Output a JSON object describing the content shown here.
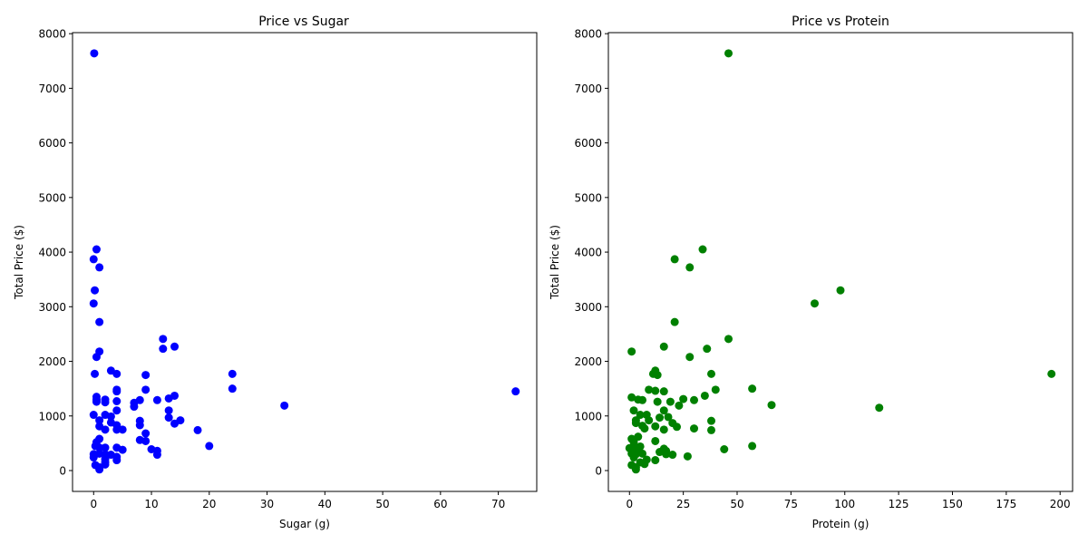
{
  "chart_data": [
    {
      "type": "scatter",
      "title": "Price vs Sugar",
      "xlabel": "Sugar (g)",
      "ylabel": "Total Price ($)",
      "xlim": [
        -3.65,
        76.65
      ],
      "ylim": [
        -382,
        8019
      ],
      "xticks": [
        0,
        10,
        20,
        30,
        40,
        50,
        60,
        70
      ],
      "yticks": [
        0,
        1000,
        2000,
        3000,
        4000,
        5000,
        6000,
        7000,
        8000
      ],
      "grid": false,
      "color": "#0000ff",
      "points": [
        [
          0.1,
          7640
        ],
        [
          0.5,
          4050
        ],
        [
          0,
          3870
        ],
        [
          1,
          3720
        ],
        [
          0.2,
          3300
        ],
        [
          0,
          3060
        ],
        [
          1,
          2720
        ],
        [
          12,
          2410
        ],
        [
          14,
          2270
        ],
        [
          12,
          2230
        ],
        [
          1,
          2180
        ],
        [
          0.5,
          2080
        ],
        [
          3,
          1830
        ],
        [
          4,
          1770
        ],
        [
          9,
          1750
        ],
        [
          0.2,
          1770
        ],
        [
          24,
          1770
        ],
        [
          24,
          1500
        ],
        [
          73,
          1450
        ],
        [
          4,
          1480
        ],
        [
          4,
          1450
        ],
        [
          9,
          1480
        ],
        [
          14,
          1370
        ],
        [
          13,
          1320
        ],
        [
          11,
          1290
        ],
        [
          8,
          1290
        ],
        [
          7,
          1240
        ],
        [
          7,
          1170
        ],
        [
          33,
          1190
        ],
        [
          0.5,
          1350
        ],
        [
          0.5,
          1300
        ],
        [
          0.5,
          1260
        ],
        [
          2,
          1300
        ],
        [
          2,
          1250
        ],
        [
          4,
          1270
        ],
        [
          4,
          1100
        ],
        [
          13,
          1100
        ],
        [
          13,
          970
        ],
        [
          0,
          1020
        ],
        [
          2,
          1020
        ],
        [
          3,
          990
        ],
        [
          1,
          920
        ],
        [
          14,
          860
        ],
        [
          15,
          920
        ],
        [
          8,
          910
        ],
        [
          8,
          830
        ],
        [
          3,
          880
        ],
        [
          1,
          810
        ],
        [
          2,
          750
        ],
        [
          4,
          830
        ],
        [
          4,
          750
        ],
        [
          5,
          750
        ],
        [
          18,
          740
        ],
        [
          9,
          680
        ],
        [
          1,
          580
        ],
        [
          0.5,
          520
        ],
        [
          8,
          560
        ],
        [
          9,
          540
        ],
        [
          20,
          450
        ],
        [
          0.3,
          450
        ],
        [
          1,
          420
        ],
        [
          2,
          420
        ],
        [
          4,
          420
        ],
        [
          5,
          380
        ],
        [
          10,
          390
        ],
        [
          11,
          360
        ],
        [
          11,
          290
        ],
        [
          0,
          300
        ],
        [
          0,
          240
        ],
        [
          1,
          310
        ],
        [
          2,
          300
        ],
        [
          3,
          290
        ],
        [
          4,
          250
        ],
        [
          4,
          190
        ],
        [
          2,
          210
        ],
        [
          0.3,
          100
        ],
        [
          2,
          150
        ],
        [
          2,
          110
        ],
        [
          1,
          60
        ],
        [
          1,
          20
        ]
      ]
    },
    {
      "type": "scatter",
      "title": "Price vs Protein",
      "xlabel": "Protein (g)",
      "ylabel": "Total Price ($)",
      "xlim": [
        -9.8,
        205.8
      ],
      "ylim": [
        -382,
        8019
      ],
      "xticks": [
        0,
        25,
        50,
        75,
        100,
        125,
        150,
        175,
        200
      ],
      "yticks": [
        0,
        1000,
        2000,
        3000,
        4000,
        5000,
        6000,
        7000,
        8000
      ],
      "grid": false,
      "color": "#008000",
      "points": [
        [
          46,
          7640
        ],
        [
          34,
          4050
        ],
        [
          21,
          3870
        ],
        [
          28,
          3720
        ],
        [
          98,
          3300
        ],
        [
          86,
          3060
        ],
        [
          21,
          2720
        ],
        [
          46,
          2410
        ],
        [
          16,
          2270
        ],
        [
          36,
          2230
        ],
        [
          1,
          2180
        ],
        [
          28,
          2080
        ],
        [
          12,
          1830
        ],
        [
          11,
          1770
        ],
        [
          13,
          1750
        ],
        [
          38,
          1770
        ],
        [
          196,
          1770
        ],
        [
          57,
          1500
        ],
        [
          40,
          1480
        ],
        [
          9,
          1480
        ],
        [
          12,
          1460
        ],
        [
          16,
          1450
        ],
        [
          35,
          1370
        ],
        [
          1,
          1340
        ],
        [
          4,
          1300
        ],
        [
          6,
          1290
        ],
        [
          13,
          1260
        ],
        [
          19,
          1260
        ],
        [
          25,
          1310
        ],
        [
          30,
          1290
        ],
        [
          66,
          1200
        ],
        [
          116,
          1150
        ],
        [
          23,
          1190
        ],
        [
          16,
          1100
        ],
        [
          2,
          1100
        ],
        [
          8,
          1020
        ],
        [
          5,
          1020
        ],
        [
          14,
          970
        ],
        [
          18,
          980
        ],
        [
          9,
          920
        ],
        [
          3,
          920
        ],
        [
          3,
          870
        ],
        [
          20,
          870
        ],
        [
          38,
          910
        ],
        [
          6,
          820
        ],
        [
          12,
          810
        ],
        [
          7,
          770
        ],
        [
          16,
          750
        ],
        [
          22,
          800
        ],
        [
          30,
          770
        ],
        [
          38,
          740
        ],
        [
          4,
          620
        ],
        [
          1,
          580
        ],
        [
          2,
          520
        ],
        [
          12,
          540
        ],
        [
          57,
          450
        ],
        [
          44,
          390
        ],
        [
          0,
          410
        ],
        [
          2,
          420
        ],
        [
          4,
          380
        ],
        [
          5,
          440
        ],
        [
          16,
          400
        ],
        [
          17,
          360
        ],
        [
          14,
          340
        ],
        [
          1,
          310
        ],
        [
          3,
          300
        ],
        [
          6,
          310
        ],
        [
          17,
          300
        ],
        [
          20,
          290
        ],
        [
          27,
          260
        ],
        [
          2,
          240
        ],
        [
          8,
          200
        ],
        [
          12,
          190
        ],
        [
          5,
          150
        ],
        [
          7,
          120
        ],
        [
          1,
          100
        ],
        [
          3,
          60
        ],
        [
          3,
          20
        ]
      ]
    }
  ]
}
